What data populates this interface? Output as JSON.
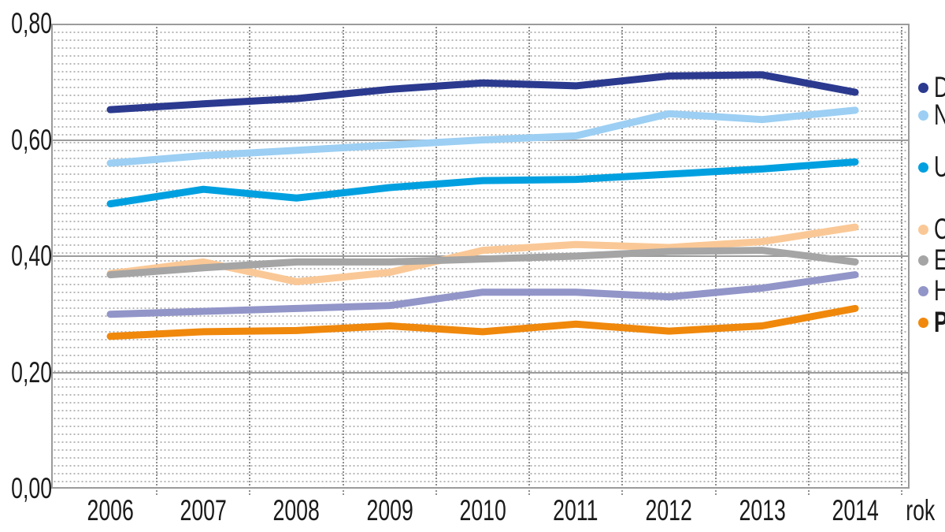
{
  "chart_data": {
    "type": "line",
    "title": "",
    "xlabel": "rok",
    "ylabel": "",
    "x": [
      "2006",
      "2007",
      "2008",
      "2009",
      "2010",
      "2011",
      "2012",
      "2013",
      "2014"
    ],
    "ylim": [
      0.0,
      0.8
    ],
    "ytick_labels_bottom_to_top": [
      "0,00",
      "0,20",
      "0,40",
      "0,60",
      "0,80"
    ],
    "ytick_values_bottom_to_top": [
      0.0,
      0.2,
      0.4,
      0.6,
      0.8
    ],
    "grid": "solid gray major horizontal lines every 0.20, fine dotted minor horizontal lines, dotted vertical lines at half-year positions",
    "legend_position": "right edge, labels clipped to first letter by image border",
    "series": [
      {
        "name": "D",
        "color": "#2B3A8F",
        "bold": false,
        "values": [
          0.652,
          0.662,
          0.671,
          0.687,
          0.698,
          0.693,
          0.71,
          0.712,
          0.682
        ]
      },
      {
        "name": "N",
        "color": "#9CCFF3",
        "bold": false,
        "values": [
          0.56,
          0.573,
          0.582,
          0.591,
          0.6,
          0.607,
          0.645,
          0.635,
          0.651
        ]
      },
      {
        "name": "U",
        "color": "#00A0E0",
        "bold": false,
        "values": [
          0.49,
          0.515,
          0.5,
          0.518,
          0.53,
          0.532,
          0.541,
          0.55,
          0.562
        ]
      },
      {
        "name": "C",
        "color": "#FAC896",
        "bold": false,
        "values": [
          0.37,
          0.39,
          0.356,
          0.372,
          0.41,
          0.42,
          0.415,
          0.425,
          0.45
        ]
      },
      {
        "name": "E",
        "color": "#A5A5A5",
        "bold": false,
        "values": [
          0.368,
          0.38,
          0.39,
          0.39,
          0.395,
          0.4,
          0.408,
          0.41,
          0.39
        ]
      },
      {
        "name": "H",
        "color": "#9295C8",
        "bold": false,
        "values": [
          0.3,
          0.305,
          0.31,
          0.315,
          0.338,
          0.338,
          0.33,
          0.345,
          0.368
        ]
      },
      {
        "name": "P",
        "color": "#F0880C",
        "bold": true,
        "values": [
          0.262,
          0.27,
          0.272,
          0.28,
          0.27,
          0.283,
          0.271,
          0.28,
          0.31
        ]
      }
    ],
    "colors": {
      "grid_major": "#9b9b9b",
      "grid_minor_dots": "#b6b6b6",
      "axis_text": "#1a1a1a"
    }
  }
}
